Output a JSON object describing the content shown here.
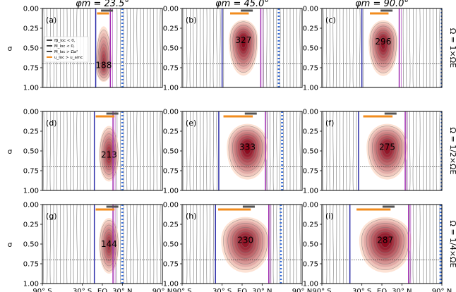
{
  "chart_data": {
    "type": "heatmap",
    "column_titles": [
      "φm = 23.5°",
      "φm = 45.0°",
      "φm = 90.0°"
    ],
    "row_labels": [
      "Ω = 1×ΩE",
      "Ω = 1/2×ΩE",
      "Ω = 1/4×ΩE"
    ],
    "ylabel": "σ",
    "y_ticks": [
      "0.00",
      "0.25",
      "0.50",
      "0.75",
      "1.00"
    ],
    "ylim": [
      1.0,
      0.0
    ],
    "x_ticks": [
      "90° S",
      "30° S",
      "EQ",
      "30° N",
      "90° N"
    ],
    "xlim": [
      -90,
      90
    ],
    "tropopause_sigma": 0.7,
    "panels": [
      {
        "label": "(a)",
        "peak": "188",
        "peak_lat": 2,
        "peak_sigma": 0.72,
        "width": 14,
        "south_edge": -10,
        "north_edge": 14,
        "strength": 0.8,
        "blue_lat": -10,
        "purple_lat": 12,
        "dotted_lat": 30
      },
      {
        "label": "(b)",
        "peak": "327",
        "peak_lat": 2,
        "peak_sigma": 0.4,
        "width": 18,
        "south_edge": -20,
        "north_edge": 24,
        "strength": 1.0,
        "blue_lat": -30,
        "purple_lat": 28,
        "dotted_lat": 55
      },
      {
        "label": "(c)",
        "peak": "296",
        "peak_lat": 2,
        "peak_sigma": 0.42,
        "width": 18,
        "south_edge": -20,
        "north_edge": 24,
        "strength": 0.95,
        "blue_lat": -30,
        "purple_lat": 26,
        "dotted_lat": 90
      },
      {
        "label": "(d)",
        "peak": "213",
        "peak_lat": 10,
        "peak_sigma": 0.55,
        "width": 16,
        "south_edge": -12,
        "north_edge": 18,
        "strength": 0.85,
        "blue_lat": -12,
        "purple_lat": 16,
        "dotted_lat": 30
      },
      {
        "label": "(e)",
        "peak": "333",
        "peak_lat": 8,
        "peak_sigma": 0.45,
        "width": 24,
        "south_edge": -30,
        "north_edge": 32,
        "strength": 1.0,
        "blue_lat": -35,
        "purple_lat": 35,
        "dotted_lat": 60
      },
      {
        "label": "(f)",
        "peak": "275",
        "peak_lat": 8,
        "peak_sigma": 0.45,
        "width": 24,
        "south_edge": -30,
        "north_edge": 32,
        "strength": 0.95,
        "blue_lat": -35,
        "purple_lat": 35,
        "dotted_lat": 90
      },
      {
        "label": "(g)",
        "peak": "144",
        "peak_lat": 10,
        "peak_sigma": 0.5,
        "width": 16,
        "south_edge": -12,
        "north_edge": 18,
        "strength": 0.8,
        "blue_lat": -12,
        "purple_lat": 16,
        "dotted_lat": 30
      },
      {
        "label": "(h)",
        "peak": "230",
        "peak_lat": 5,
        "peak_sigma": 0.45,
        "width": 30,
        "south_edge": -38,
        "north_edge": 35,
        "strength": 0.95,
        "blue_lat": -40,
        "purple_lat": 40,
        "dotted_lat": 58
      },
      {
        "label": "(i)",
        "peak": "287",
        "peak_lat": 5,
        "peak_sigma": 0.45,
        "width": 32,
        "south_edge": -40,
        "north_edge": 38,
        "strength": 1.0,
        "blue_lat": -48,
        "purple_lat": 40,
        "dotted_lat": 88
      }
    ],
    "legend": [
      {
        "label": "fβ_loc < 0,",
        "color": "#444444"
      },
      {
        "label": "M_loc < 0,",
        "color": "#444444"
      },
      {
        "label": "M_loc > Ωa²",
        "color": "#444444"
      },
      {
        "label": "u_loc > u_amc",
        "color": "#f28c1e"
      }
    ],
    "colors": {
      "heat_low": "#fde0d2",
      "heat_high": "#8b0a1e",
      "blue_line": "#2c2ca8",
      "purple_line": "#a02ab0",
      "dotted_line": "#3a6fd8",
      "orange_bar": "#f28c1e",
      "gray_bar": "#555555",
      "contour": "#777777"
    }
  }
}
